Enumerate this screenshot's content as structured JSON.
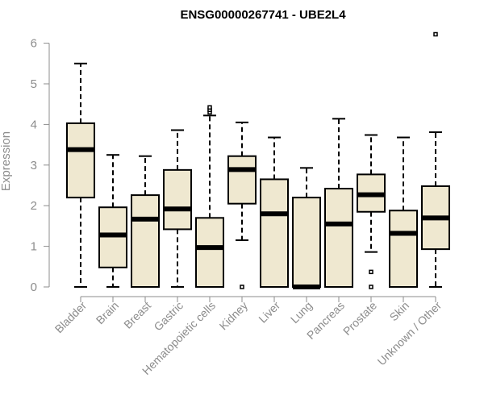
{
  "chart_data": {
    "type": "boxplot",
    "title": "ENSG00000267741 - UBE2L4",
    "xlabel": "",
    "ylabel": "Expression",
    "ylim": [
      0,
      6.3
    ],
    "yticks": [
      0,
      1,
      2,
      3,
      4,
      5,
      6
    ],
    "grid": false,
    "box_fill": "#efe8d0",
    "line_color": "#000000",
    "axis_color": "#8c8c8c",
    "categories": [
      "Bladder",
      "Brain",
      "Breast",
      "Gastric",
      "Hematopoietic cells",
      "Kidney",
      "Liver",
      "Lung",
      "Pancreas",
      "Prostate",
      "Skin",
      "Unknown / Other"
    ],
    "boxes": [
      {
        "min": 0,
        "q1": 2.2,
        "median": 3.38,
        "q3": 4.03,
        "max": 5.5,
        "outliers": []
      },
      {
        "min": 0,
        "q1": 0.48,
        "median": 1.28,
        "q3": 1.96,
        "max": 3.25,
        "outliers": []
      },
      {
        "min": 0,
        "q1": 0,
        "median": 1.67,
        "q3": 2.26,
        "max": 3.22,
        "outliers": []
      },
      {
        "min": 0,
        "q1": 1.42,
        "median": 1.92,
        "q3": 2.88,
        "max": 3.86,
        "outliers": []
      },
      {
        "min": 0,
        "q1": 0,
        "median": 0.97,
        "q3": 1.7,
        "max": 4.22,
        "outliers": [
          4.3,
          4.36,
          4.42
        ]
      },
      {
        "min": 1.15,
        "q1": 2.05,
        "median": 2.89,
        "q3": 3.22,
        "max": 4.05,
        "outliers": [
          0
        ]
      },
      {
        "min": 0,
        "q1": 0,
        "median": 1.8,
        "q3": 2.65,
        "max": 3.68,
        "outliers": []
      },
      {
        "min": 0,
        "q1": 0,
        "median": 0,
        "q3": 2.2,
        "max": 2.93,
        "outliers": []
      },
      {
        "min": 0,
        "q1": 0,
        "median": 1.55,
        "q3": 2.42,
        "max": 4.14,
        "outliers": []
      },
      {
        "min": 0.86,
        "q1": 1.85,
        "median": 2.27,
        "q3": 2.77,
        "max": 3.74,
        "outliers": [
          0.37,
          0
        ]
      },
      {
        "min": 0,
        "q1": 0,
        "median": 1.32,
        "q3": 1.88,
        "max": 3.68,
        "outliers": []
      },
      {
        "min": 0,
        "q1": 0.93,
        "median": 1.7,
        "q3": 2.48,
        "max": 3.81,
        "outliers": [
          6.22
        ]
      }
    ]
  }
}
